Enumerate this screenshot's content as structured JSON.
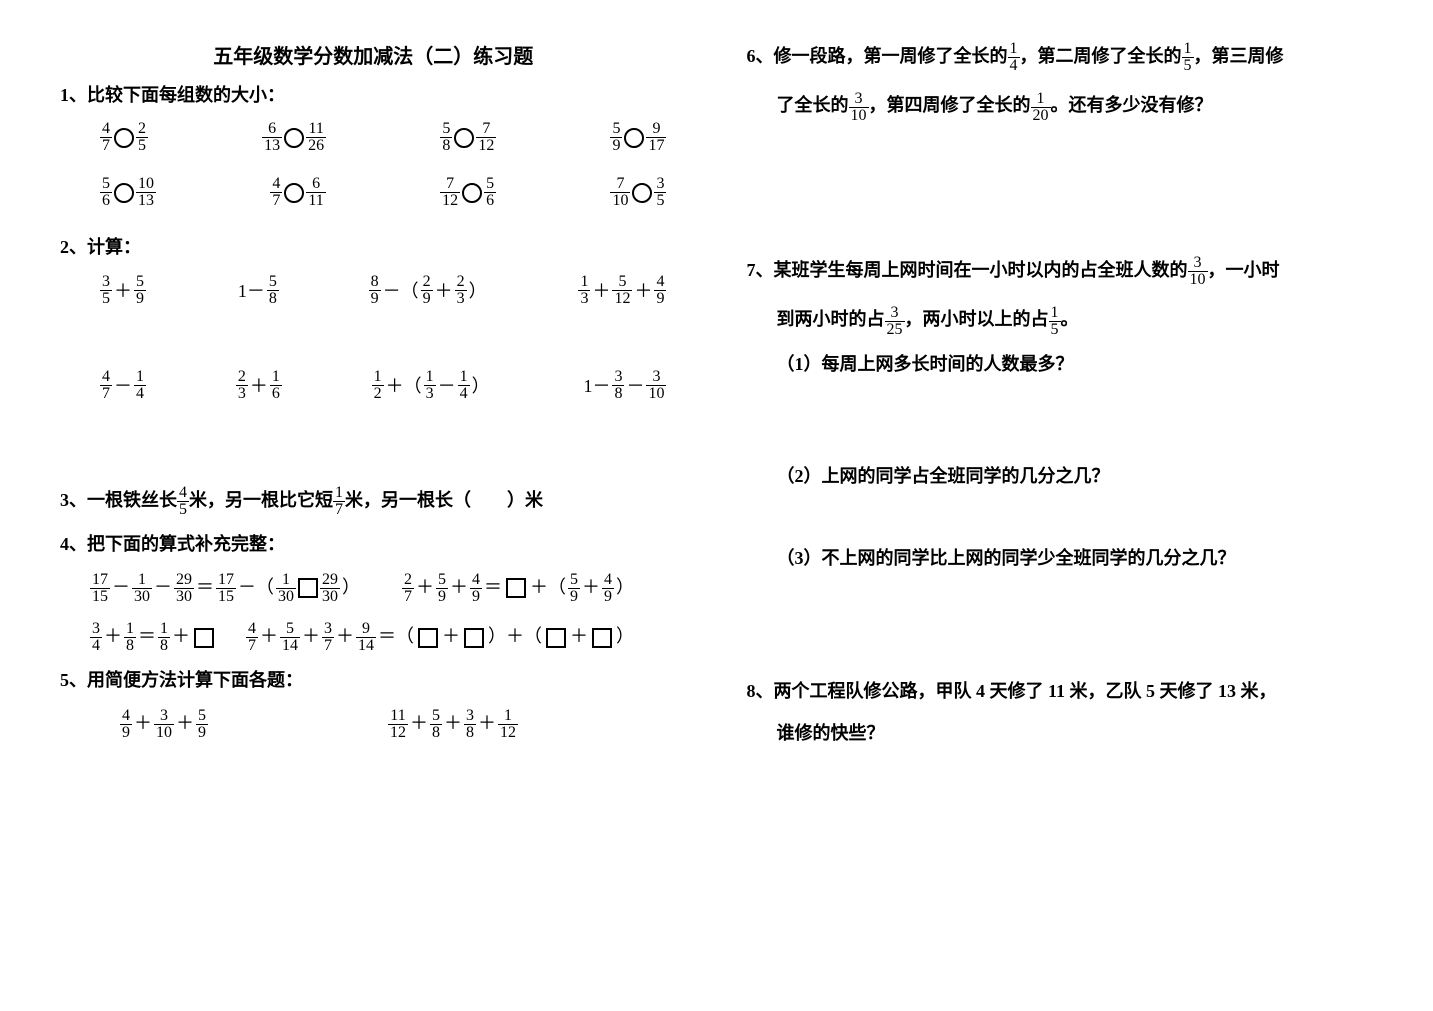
{
  "title": "五年级数学分数加减法（二）练习题",
  "q1": {
    "label": "1、比较下面每组数的大小：",
    "rows": [
      [
        [
          "4",
          "7",
          "2",
          "5"
        ],
        [
          "6",
          "13",
          "11",
          "26"
        ],
        [
          "5",
          "8",
          "7",
          "12"
        ],
        [
          "5",
          "9",
          "9",
          "17"
        ]
      ],
      [
        [
          "5",
          "6",
          "10",
          "13"
        ],
        [
          "4",
          "7",
          "6",
          "11"
        ],
        [
          "7",
          "12",
          "5",
          "6"
        ],
        [
          "7",
          "10",
          "3",
          "5"
        ]
      ]
    ]
  },
  "q2": {
    "label": "2、计算：",
    "row1": {
      "a": {
        "f1": [
          "3",
          "5"
        ],
        "op": "＋",
        "f2": [
          "5",
          "9"
        ]
      },
      "b": {
        "pre": "1－",
        "f": [
          "5",
          "8"
        ]
      },
      "c": {
        "f1": [
          "8",
          "9"
        ],
        "mid": "－（",
        "f2": [
          "2",
          "9"
        ],
        "op": "＋",
        "f3": [
          "2",
          "3"
        ],
        "post": "）"
      },
      "d": {
        "f1": [
          "1",
          "3"
        ],
        "op1": "＋",
        "f2": [
          "5",
          "12"
        ],
        "op2": "＋",
        "f3": [
          "4",
          "9"
        ]
      }
    },
    "row2": {
      "a": {
        "f1": [
          "4",
          "7"
        ],
        "op": "－",
        "f2": [
          "1",
          "4"
        ]
      },
      "b": {
        "f1": [
          "2",
          "3"
        ],
        "op": "＋",
        "f2": [
          "1",
          "6"
        ]
      },
      "c": {
        "f1": [
          "1",
          "2"
        ],
        "mid": "＋（",
        "f2": [
          "1",
          "3"
        ],
        "op": "－",
        "f3": [
          "1",
          "4"
        ],
        "post": "）"
      },
      "d": {
        "pre": "1－",
        "f1": [
          "3",
          "8"
        ],
        "op": "－",
        "f2": [
          "3",
          "10"
        ]
      }
    }
  },
  "q3": {
    "pre": "3、一根铁丝长",
    "f1": [
      "4",
      "5"
    ],
    "mid1": "米，另一根比它短",
    "f2": [
      "1",
      "7"
    ],
    "post": "米，另一根长（　　）米"
  },
  "q4": {
    "label": "4、把下面的算式补充完整：",
    "r1a": {
      "f1": [
        "17",
        "15"
      ],
      "f2": [
        "1",
        "30"
      ],
      "f3": [
        "29",
        "30"
      ],
      "f4": [
        "17",
        "15"
      ],
      "f5": [
        "1",
        "30"
      ],
      "f6": [
        "29",
        "30"
      ]
    },
    "r1b": {
      "f1": [
        "2",
        "7"
      ],
      "f2": [
        "5",
        "9"
      ],
      "f3": [
        "4",
        "9"
      ],
      "f4": [
        "5",
        "9"
      ],
      "f5": [
        "4",
        "9"
      ]
    },
    "r2a": {
      "f1": [
        "3",
        "4"
      ],
      "f2": [
        "1",
        "8"
      ],
      "f3": [
        "1",
        "8"
      ]
    },
    "r2b": {
      "f1": [
        "4",
        "7"
      ],
      "f2": [
        "5",
        "14"
      ],
      "f3": [
        "3",
        "7"
      ],
      "f4": [
        "9",
        "14"
      ]
    }
  },
  "q5": {
    "label": "5、用简便方法计算下面各题：",
    "a": {
      "f1": [
        "4",
        "9"
      ],
      "f2": [
        "3",
        "10"
      ],
      "f3": [
        "5",
        "9"
      ]
    },
    "b": {
      "f1": [
        "11",
        "12"
      ],
      "f2": [
        "5",
        "8"
      ],
      "f3": [
        "3",
        "8"
      ],
      "f4": [
        "1",
        "12"
      ]
    }
  },
  "q6": {
    "pre": "6、修一段路，第一周修了全长的",
    "f1": [
      "1",
      "4"
    ],
    "mid1": "，第二周修了全长的",
    "f2": [
      "1",
      "5"
    ],
    "post1": "，第三周修",
    "line2pre": "了全长的",
    "f3": [
      "3",
      "10"
    ],
    "mid2": "，第四周修了全长的",
    "f4": [
      "1",
      "20"
    ],
    "post2": "。还有多少没有修？"
  },
  "q7": {
    "pre": "7、某班学生每周上网时间在一小时以内的占全班人数的",
    "f1": [
      "3",
      "10"
    ],
    "post": "，一小时",
    "line2pre": "到两小时的占",
    "f2": [
      "3",
      "25"
    ],
    "mid": "，两小时以上的占",
    "f3": [
      "1",
      "5"
    ],
    "post2": "。",
    "s1": "（1）每周上网多长时间的人数最多？",
    "s2": "（2）上网的同学占全班同学的几分之几？",
    "s3": "（3）不上网的同学比上网的同学少全班同学的几分之几？"
  },
  "q8": "8、两个工程队修公路，甲队 4 天修了 11 米，乙队 5 天修了 13 米，",
  "q8b": "谁修的快些？"
}
